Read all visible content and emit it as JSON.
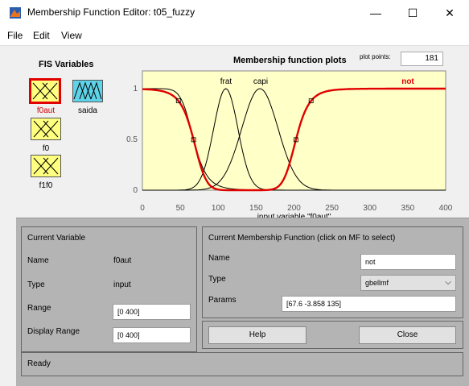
{
  "window": {
    "title": "Membership Function Editor: t05_fuzzy",
    "minimize": "—",
    "maximize": "☐",
    "close": "✕"
  },
  "menu": {
    "file": "File",
    "edit": "Edit",
    "view": "View"
  },
  "fis": {
    "title": "FIS Variables",
    "variables": [
      {
        "name": "f0aut",
        "selected": true
      },
      {
        "name": "saida",
        "selected": false
      },
      {
        "name": "f0",
        "selected": false
      },
      {
        "name": "f1f0",
        "selected": false
      }
    ]
  },
  "plot": {
    "title": "Membership function plots",
    "plot_points_label": "plot points:",
    "plot_points_value": "181",
    "xlabel": "input variable \"f0aut\"",
    "xticks": [
      "0",
      "50",
      "100",
      "150",
      "200",
      "250",
      "300",
      "350",
      "400"
    ],
    "yticks": [
      "0",
      "0.5",
      "1"
    ],
    "mf_labels": [
      "frat",
      "capi",
      "not"
    ],
    "colors": {
      "background": "#ffffc8",
      "selected": "#e00000",
      "normal": "#000000"
    }
  },
  "current_variable": {
    "title": "Current Variable",
    "name_label": "Name",
    "name_value": "f0aut",
    "type_label": "Type",
    "type_value": "input",
    "range_label": "Range",
    "range_value": "[0 400]",
    "display_range_label": "Display Range",
    "display_range_value": "[0 400]"
  },
  "current_mf": {
    "title": "Current Membership Function (click on MF to select)",
    "name_label": "Name",
    "name_value": "not",
    "type_label": "Type",
    "type_value": "gbellmf",
    "params_label": "Params",
    "params_value": "[67.6 -3.858 135]"
  },
  "buttons": {
    "help": "Help",
    "close": "Close"
  },
  "status": "Ready"
}
